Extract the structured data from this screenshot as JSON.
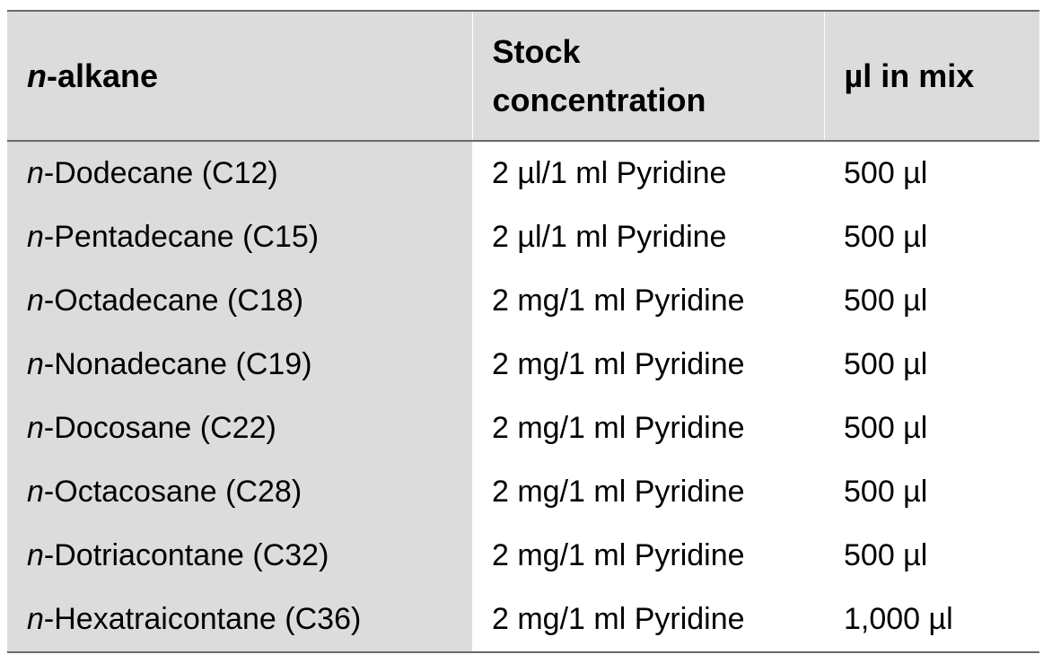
{
  "table": {
    "headers": {
      "col1_prefix": "n",
      "col1_suffix": "-alkane",
      "col2_line1": "Stock",
      "col2_line2": "concentration",
      "col3": "µl in mix"
    },
    "rows": [
      {
        "prefix": "n",
        "name": "-Dodecane (C12)",
        "stock": "2 µl/1 ml Pyridine",
        "mix": "500 µl"
      },
      {
        "prefix": "n",
        "name": "-Pentadecane (C15)",
        "stock": "2 µl/1 ml Pyridine",
        "mix": "500 µl"
      },
      {
        "prefix": "n",
        "name": "-Octadecane (C18)",
        "stock": "2 mg/1 ml Pyridine",
        "mix": "500 µl"
      },
      {
        "prefix": "n",
        "name": "-Nonadecane (C19)",
        "stock": "2 mg/1 ml Pyridine",
        "mix": "500 µl"
      },
      {
        "prefix": "n",
        "name": "-Docosane (C22)",
        "stock": "2 mg/1 ml Pyridine",
        "mix": "500 µl"
      },
      {
        "prefix": "n",
        "name": "-Octacosane (C28)",
        "stock": "2 mg/1 ml Pyridine",
        "mix": "500 µl"
      },
      {
        "prefix": "n",
        "name": "-Dotriacontane (C32)",
        "stock": "2 mg/1 ml Pyridine",
        "mix": "500 µl"
      },
      {
        "prefix": "n",
        "name": "-Hexatraicontane (C36)",
        "stock": "2 mg/1 ml Pyridine",
        "mix": "1,000 µl"
      }
    ]
  },
  "colors": {
    "header_background": "#dcdcdc",
    "first_column_background": "#dcdcdc",
    "rule_color": "#6a6a6a"
  }
}
